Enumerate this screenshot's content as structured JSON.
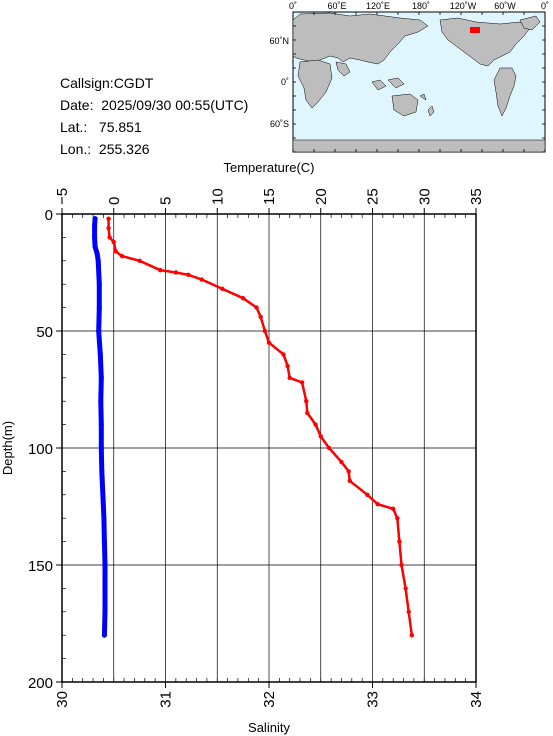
{
  "station": {
    "callsign": "Callsign:CGDT",
    "date_label": "Date:",
    "date_value": "2025/09/30 00:55(UTC)",
    "lat_label": "Lat.:",
    "lat_value": "75.851",
    "lon_label": "Lon.:",
    "lon_value": "255.326"
  },
  "map": {
    "top_labels": [
      "0˚",
      "60˚E",
      "120˚E",
      "180˚",
      "120˚W",
      "60˚W",
      "0˚"
    ],
    "side_labels": [
      "60˚N",
      "0˚",
      "60˚S"
    ],
    "ocean_color": "#dff6ff",
    "land_color": "#bdbdbd",
    "marker_color": "#ff0000"
  },
  "chart_data": {
    "type": "line",
    "temperature_axis": {
      "label": "Temperature(C)",
      "range": [
        -5,
        35
      ],
      "ticks": [
        "−5",
        "0",
        "5",
        "10",
        "15",
        "20",
        "25",
        "30",
        "35"
      ]
    },
    "salinity_axis": {
      "label": "Salinity",
      "range": [
        30,
        34
      ],
      "ticks": [
        "30",
        "31",
        "32",
        "33",
        "34"
      ]
    },
    "depth_axis": {
      "label": "Depth(m)",
      "range": [
        0,
        200
      ],
      "inverted": true,
      "ticks": [
        "0",
        "50",
        "100",
        "150",
        "200"
      ]
    },
    "grid": true,
    "series": [
      {
        "color": "#0000ff",
        "axis": "temperature",
        "points": [
          [
            -1.8,
            2
          ],
          [
            -1.85,
            5
          ],
          [
            -1.85,
            10
          ],
          [
            -1.8,
            14
          ],
          [
            -1.6,
            17
          ],
          [
            -1.5,
            20
          ],
          [
            -1.4,
            30
          ],
          [
            -1.4,
            40
          ],
          [
            -1.45,
            50
          ],
          [
            -1.3,
            60
          ],
          [
            -1.2,
            70
          ],
          [
            -1.25,
            80
          ],
          [
            -1.2,
            90
          ],
          [
            -1.2,
            100
          ],
          [
            -1.15,
            110
          ],
          [
            -1.05,
            120
          ],
          [
            -0.95,
            130
          ],
          [
            -0.9,
            140
          ],
          [
            -0.85,
            150
          ],
          [
            -0.85,
            160
          ],
          [
            -0.85,
            170
          ],
          [
            -0.9,
            180
          ]
        ]
      },
      {
        "color": "#ff0000",
        "axis": "salinity",
        "points": [
          [
            30.45,
            2
          ],
          [
            30.45,
            6
          ],
          [
            30.46,
            10
          ],
          [
            30.5,
            12
          ],
          [
            30.52,
            16
          ],
          [
            30.58,
            18
          ],
          [
            30.75,
            20
          ],
          [
            30.95,
            24
          ],
          [
            31.1,
            25
          ],
          [
            31.22,
            26
          ],
          [
            31.35,
            28
          ],
          [
            31.55,
            32
          ],
          [
            31.75,
            36
          ],
          [
            31.88,
            40
          ],
          [
            31.92,
            44
          ],
          [
            31.96,
            50
          ],
          [
            32.0,
            55
          ],
          [
            32.14,
            60
          ],
          [
            32.18,
            65
          ],
          [
            32.2,
            70
          ],
          [
            32.32,
            72
          ],
          [
            32.36,
            80
          ],
          [
            32.37,
            85
          ],
          [
            32.45,
            90
          ],
          [
            32.5,
            95
          ],
          [
            32.58,
            100
          ],
          [
            32.7,
            106
          ],
          [
            32.77,
            110
          ],
          [
            32.78,
            114
          ],
          [
            32.95,
            120
          ],
          [
            33.05,
            124
          ],
          [
            33.2,
            126
          ],
          [
            33.24,
            130
          ],
          [
            33.26,
            140
          ],
          [
            33.28,
            150
          ],
          [
            33.32,
            160
          ],
          [
            33.35,
            170
          ],
          [
            33.38,
            180
          ]
        ]
      }
    ]
  }
}
